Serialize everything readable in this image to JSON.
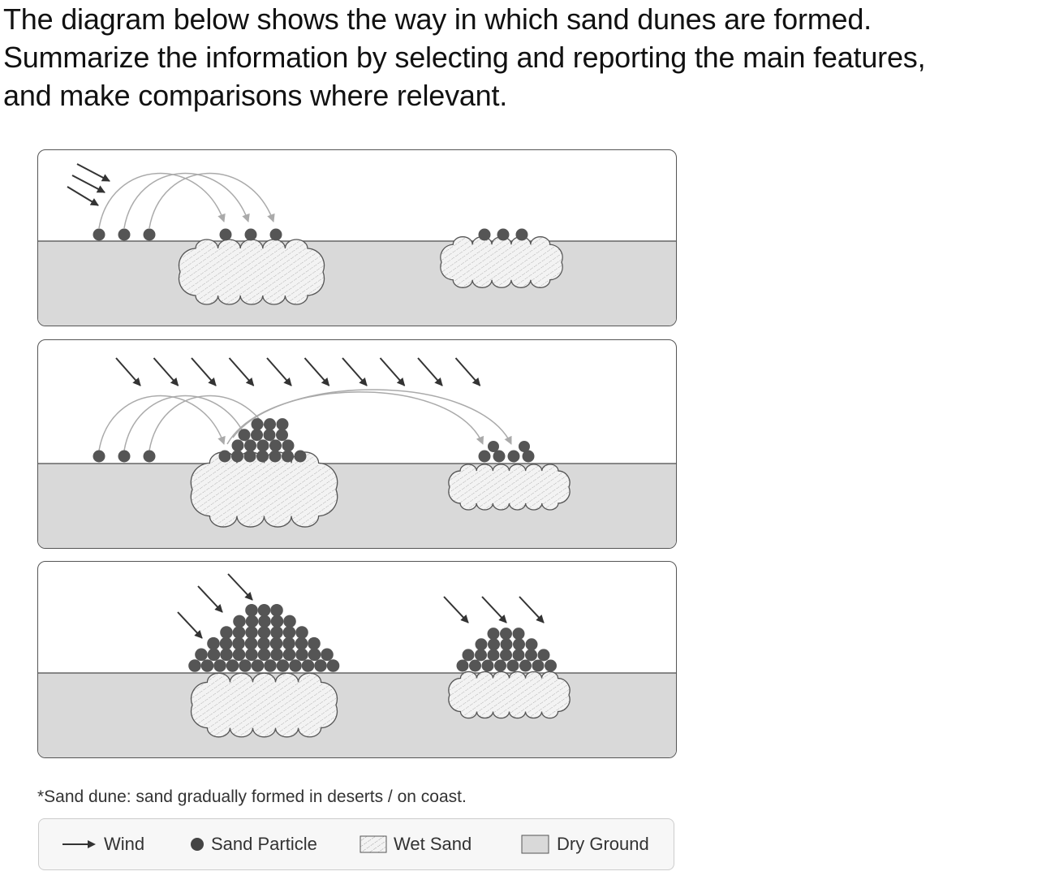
{
  "prompt": {
    "line1": "The diagram below shows the way in which sand dunes are formed.",
    "line2": "Summarize the information by selecting and reporting the main features,",
    "line3": "and make comparisons where relevant."
  },
  "diagram": {
    "stages": [
      "stage-1",
      "stage-2",
      "stage-3"
    ],
    "colors": {
      "particle": "#555555",
      "dry_ground": "#d9d9d9",
      "wet_sand": "#f2f2f2",
      "wind_arrow": "#333333",
      "trajectory": "#aaaaaa"
    }
  },
  "note": "*Sand dune: sand gradually formed in deserts / on coast.",
  "legend": {
    "wind": "Wind",
    "particle": "Sand Particle",
    "wet_sand": "Wet Sand",
    "dry_ground": "Dry Ground"
  }
}
